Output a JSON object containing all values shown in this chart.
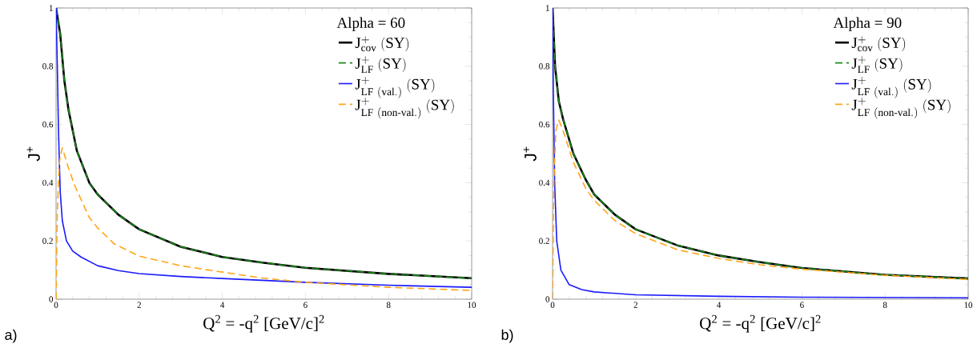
{
  "chart_data": [
    {
      "type": "line",
      "xlabel": "Q$^{2}$ = -q$^{2}$ [GeV/c]$^{2}$",
      "ylabel": "J$^{+}$",
      "legend_title": "Alpha = 60",
      "legend": "top right",
      "annotations": [
        "a)"
      ],
      "xlim": [
        0,
        10
      ],
      "ylim": [
        0,
        1
      ],
      "xticks": [
        0,
        2,
        4,
        6,
        8,
        10
      ],
      "yticks": [
        0,
        0.2,
        0.4,
        0.6,
        0.8,
        1
      ],
      "grid": false,
      "series": [
        {
          "name": "\\mathrm{J}^{+}_{\\mathrm{cov}}\\ \\mathrm{(SY)}",
          "color": "#000000",
          "line_style": "solid",
          "x": [
            0,
            0.1,
            0.2,
            0.3,
            0.5,
            0.8,
            1,
            1.5,
            2,
            3,
            4,
            5,
            6,
            8,
            10
          ],
          "values": [
            1,
            0.91,
            0.75,
            0.65,
            0.51,
            0.4,
            0.36,
            0.29,
            0.24,
            0.18,
            0.145,
            0.125,
            0.108,
            0.087,
            0.072
          ]
        },
        {
          "name": "\\mathrm{J}^{+}_{\\mathrm{LF}}\\ \\mathrm{(SY)}",
          "color": "#1a8a1a",
          "line_style": "dashed",
          "x": [
            0,
            0.1,
            0.2,
            0.3,
            0.5,
            0.8,
            1,
            1.5,
            2,
            3,
            4,
            5,
            6,
            8,
            10
          ],
          "values": [
            1,
            0.91,
            0.75,
            0.65,
            0.51,
            0.4,
            0.36,
            0.29,
            0.24,
            0.18,
            0.145,
            0.125,
            0.108,
            0.087,
            0.072
          ]
        },
        {
          "name": "\\mathrm{J}^{+}_{\\mathrm{LF\\ (val.)}}\\ \\mathrm{(SY)}",
          "color": "#1a1aff",
          "line_style": "solid",
          "x": [
            0,
            0.03,
            0.06,
            0.1,
            0.15,
            0.25,
            0.4,
            0.6,
            1,
            1.5,
            2,
            3,
            4,
            6,
            8,
            10
          ],
          "values": [
            1,
            0.8,
            0.57,
            0.37,
            0.27,
            0.2,
            0.165,
            0.145,
            0.115,
            0.098,
            0.088,
            0.078,
            0.071,
            0.058,
            0.048,
            0.041
          ]
        },
        {
          "name": "\\mathrm{J}^{+}_{\\mathrm{LF\\ (non\\text{-}val.)}}\\ \\mathrm{(SY)}",
          "color": "#ffa51a",
          "line_style": "dashed",
          "x": [
            0,
            0.03,
            0.08,
            0.15,
            0.3,
            0.45,
            0.8,
            1,
            1.4,
            2,
            3,
            4,
            5,
            6,
            8,
            10
          ],
          "values": [
            0,
            0.3,
            0.47,
            0.52,
            0.45,
            0.39,
            0.28,
            0.245,
            0.19,
            0.148,
            0.115,
            0.093,
            0.072,
            0.058,
            0.041,
            0.03
          ]
        }
      ]
    },
    {
      "type": "line",
      "xlabel": "Q$^{2}$ = -q$^{2}$ [GeV/c]$^{2}$",
      "ylabel": "J$^{+}$",
      "legend_title": "Alpha = 90",
      "legend": "top right",
      "annotations": [
        "b)"
      ],
      "xlim": [
        0,
        10
      ],
      "ylim": [
        0,
        1
      ],
      "xticks": [
        0,
        2,
        4,
        6,
        8,
        10
      ],
      "yticks": [
        0,
        0.2,
        0.4,
        0.6,
        0.8,
        1
      ],
      "grid": false,
      "series": [
        {
          "name": "\\mathrm{J}^{+}_{\\mathrm{cov}}\\ \\mathrm{(SY)}",
          "color": "#000000",
          "line_style": "solid",
          "x": [
            0,
            0.06,
            0.15,
            0.25,
            0.5,
            0.8,
            1,
            1.5,
            2,
            3,
            4,
            5,
            6,
            8,
            10
          ],
          "values": [
            1,
            0.8,
            0.68,
            0.62,
            0.5,
            0.41,
            0.36,
            0.29,
            0.24,
            0.185,
            0.15,
            0.127,
            0.107,
            0.084,
            0.071
          ]
        },
        {
          "name": "\\mathrm{J}^{+}_{\\mathrm{LF}}\\ \\mathrm{(SY)}",
          "color": "#1a8a1a",
          "line_style": "dashed",
          "x": [
            0,
            0.06,
            0.15,
            0.25,
            0.5,
            0.8,
            1,
            1.5,
            2,
            3,
            4,
            5,
            6,
            8,
            10
          ],
          "values": [
            1,
            0.8,
            0.68,
            0.62,
            0.5,
            0.41,
            0.36,
            0.29,
            0.24,
            0.185,
            0.15,
            0.127,
            0.107,
            0.084,
            0.071
          ]
        },
        {
          "name": "\\mathrm{J}^{+}_{\\mathrm{LF\\ (val.)}}\\ \\mathrm{(SY)}",
          "color": "#1a1aff",
          "line_style": "solid",
          "x": [
            0,
            0.02,
            0.05,
            0.1,
            0.2,
            0.4,
            0.7,
            1,
            2,
            4,
            6,
            10
          ],
          "values": [
            1,
            0.7,
            0.4,
            0.2,
            0.1,
            0.05,
            0.033,
            0.025,
            0.015,
            0.01,
            0.007,
            0.005
          ]
        },
        {
          "name": "\\mathrm{J}^{+}_{\\mathrm{LF\\ (non\\text{-}val.)}}\\ \\mathrm{(SY)}",
          "color": "#ffa51a",
          "line_style": "dashed",
          "x": [
            0,
            0.03,
            0.08,
            0.15,
            0.25,
            0.5,
            0.8,
            1,
            1.5,
            2,
            3,
            4,
            5,
            6,
            8,
            10
          ],
          "values": [
            0,
            0.4,
            0.58,
            0.615,
            0.58,
            0.47,
            0.38,
            0.34,
            0.27,
            0.225,
            0.17,
            0.14,
            0.118,
            0.103,
            0.082,
            0.068
          ]
        }
      ]
    }
  ]
}
